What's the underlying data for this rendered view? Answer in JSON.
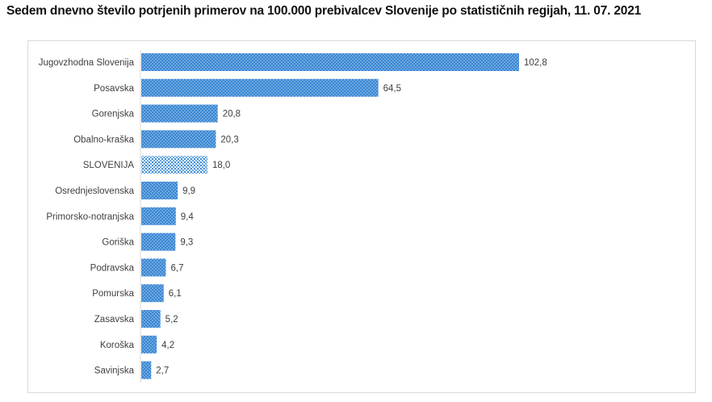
{
  "chart_data": {
    "type": "bar",
    "orientation": "horizontal",
    "title": "Sedem dnevno število potrjenih primerov na 100.000 prebivalcev Slovenije po statističnih regijah, 11. 07. 2021",
    "xlabel": "",
    "ylabel": "",
    "xlim": [
      0,
      102.8
    ],
    "grid": false,
    "categories": [
      "Jugovzhodna Slovenija",
      "Posavska",
      "Gorenjska",
      "Obalno-kraška",
      "SLOVENIJA",
      "Osrednjeslovenska",
      "Primorsko-notranjska",
      "Goriška",
      "Podravska",
      "Pomurska",
      "Zasavska",
      "Koroška",
      "Savinjska"
    ],
    "values": [
      102.8,
      64.5,
      20.8,
      20.3,
      18.0,
      9.9,
      9.4,
      9.3,
      6.7,
      6.1,
      5.2,
      4.2,
      2.7
    ],
    "labels": [
      "102,8",
      "64,5",
      "20,8",
      "20,3",
      "18,0",
      "9,9",
      "9,4",
      "9,3",
      "6,7",
      "6,1",
      "5,2",
      "4,2",
      "2,7"
    ],
    "highlight": "SLOVENIJA",
    "colors": {
      "bar": "#3a86d2",
      "bar_dot": "#a9d0f2",
      "highlight": "#8ec3ec",
      "highlight_dot": "#e6f3fc"
    }
  }
}
